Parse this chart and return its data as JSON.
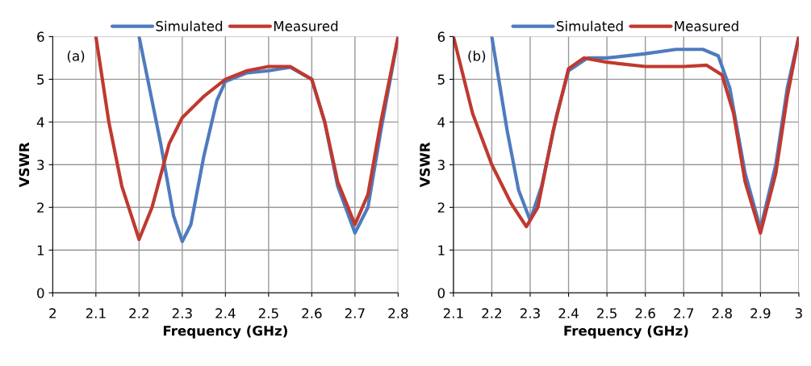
{
  "chart_data": [
    {
      "type": "line",
      "xlabel": "Frequency (GHz)",
      "ylabel": "VSWR",
      "annotations": [
        "(a)"
      ],
      "xlim": [
        2,
        2.8
      ],
      "xticks": [
        2,
        2.1,
        2.2,
        2.3,
        2.4,
        2.5,
        2.6,
        2.7,
        2.8
      ],
      "ylim": [
        0,
        6
      ],
      "yticks": [
        0,
        1,
        2,
        3,
        4,
        5,
        6
      ],
      "grid": true,
      "legend": "top",
      "series": [
        {
          "name": "Simulated",
          "color": "#4f7bbf",
          "x": [
            2.2,
            2.25,
            2.28,
            2.3,
            2.32,
            2.35,
            2.38,
            2.4,
            2.45,
            2.5,
            2.55,
            2.6,
            2.63,
            2.66,
            2.7,
            2.73,
            2.76,
            2.8
          ],
          "values": [
            6,
            3.5,
            1.8,
            1.2,
            1.6,
            3.2,
            4.5,
            4.95,
            5.15,
            5.2,
            5.28,
            5.0,
            4.0,
            2.5,
            1.4,
            2.0,
            3.8,
            6
          ]
        },
        {
          "name": "Measured",
          "color": "#c0392f",
          "x": [
            2.1,
            2.13,
            2.16,
            2.2,
            2.23,
            2.27,
            2.3,
            2.35,
            2.4,
            2.45,
            2.5,
            2.55,
            2.6,
            2.63,
            2.66,
            2.7,
            2.73,
            2.76,
            2.8
          ],
          "values": [
            6,
            4.0,
            2.5,
            1.25,
            2.0,
            3.5,
            4.1,
            4.6,
            5.0,
            5.2,
            5.3,
            5.3,
            5.0,
            4.0,
            2.6,
            1.6,
            2.3,
            4.0,
            6
          ]
        }
      ]
    },
    {
      "type": "line",
      "xlabel": "Frequency (GHz)",
      "ylabel": "VSWR",
      "annotations": [
        "(b)"
      ],
      "xlim": [
        2.1,
        3
      ],
      "xticks": [
        2.1,
        2.2,
        2.3,
        2.4,
        2.5,
        2.6,
        2.7,
        2.8,
        2.9,
        3
      ],
      "ylim": [
        0,
        6
      ],
      "yticks": [
        0,
        1,
        2,
        3,
        4,
        5,
        6
      ],
      "grid": true,
      "legend": "top",
      "series": [
        {
          "name": "Simulated",
          "color": "#4f7bbf",
          "x": [
            2.2,
            2.24,
            2.27,
            2.3,
            2.33,
            2.37,
            2.4,
            2.45,
            2.5,
            2.6,
            2.68,
            2.75,
            2.79,
            2.82,
            2.86,
            2.9,
            2.94,
            2.97,
            3.0
          ],
          "values": [
            6,
            3.8,
            2.4,
            1.7,
            2.5,
            4.2,
            5.2,
            5.5,
            5.5,
            5.6,
            5.7,
            5.7,
            5.55,
            4.8,
            2.8,
            1.5,
            3.0,
            4.8,
            6
          ]
        },
        {
          "name": "Measured",
          "color": "#c0392f",
          "x": [
            2.1,
            2.15,
            2.2,
            2.25,
            2.29,
            2.32,
            2.36,
            2.4,
            2.44,
            2.5,
            2.6,
            2.7,
            2.76,
            2.8,
            2.83,
            2.86,
            2.9,
            2.94,
            2.97,
            3.0
          ],
          "values": [
            6,
            4.2,
            3.0,
            2.1,
            1.55,
            2.0,
            3.8,
            5.25,
            5.5,
            5.4,
            5.3,
            5.3,
            5.33,
            5.1,
            4.2,
            2.6,
            1.4,
            2.8,
            4.6,
            6
          ]
        }
      ]
    }
  ]
}
